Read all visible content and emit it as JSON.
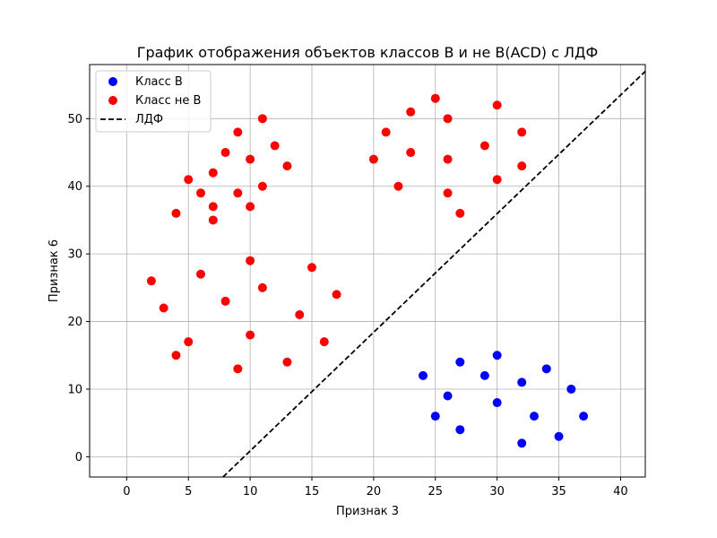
{
  "chart_data": {
    "type": "scatter",
    "title": "График отображения объектов классов B и не B(ACD) с ЛДФ",
    "xlabel": "Признак 3",
    "ylabel": "Признак 6",
    "xlim": [
      -3,
      42
    ],
    "ylim": [
      -3,
      58
    ],
    "xticks": [
      0,
      5,
      10,
      15,
      20,
      25,
      30,
      35,
      40
    ],
    "yticks": [
      0,
      10,
      20,
      30,
      40,
      50
    ],
    "grid": true,
    "legend_position": "top-left",
    "series": [
      {
        "name": "Класс B",
        "kind": "points",
        "color": "#0000ff",
        "points": [
          [
            24,
            12
          ],
          [
            25,
            6
          ],
          [
            26,
            9
          ],
          [
            27,
            14
          ],
          [
            27,
            4
          ],
          [
            29,
            12
          ],
          [
            30,
            15
          ],
          [
            30,
            8
          ],
          [
            32,
            11
          ],
          [
            32,
            2
          ],
          [
            33,
            6
          ],
          [
            34,
            13
          ],
          [
            35,
            3
          ],
          [
            36,
            10
          ],
          [
            37,
            6
          ]
        ]
      },
      {
        "name": "Класс не B",
        "kind": "points",
        "color": "#ff0000",
        "points": [
          [
            2,
            26
          ],
          [
            3,
            22
          ],
          [
            4,
            15
          ],
          [
            4,
            36
          ],
          [
            5,
            17
          ],
          [
            5,
            41
          ],
          [
            6,
            27
          ],
          [
            6,
            39
          ],
          [
            7,
            42
          ],
          [
            7,
            37
          ],
          [
            7,
            35
          ],
          [
            8,
            45
          ],
          [
            8,
            23
          ],
          [
            9,
            48
          ],
          [
            9,
            39
          ],
          [
            9,
            13
          ],
          [
            10,
            44
          ],
          [
            10,
            37
          ],
          [
            10,
            29
          ],
          [
            10,
            18
          ],
          [
            11,
            50
          ],
          [
            11,
            40
          ],
          [
            11,
            25
          ],
          [
            12,
            46
          ],
          [
            13,
            43
          ],
          [
            13,
            14
          ],
          [
            14,
            21
          ],
          [
            15,
            28
          ],
          [
            16,
            17
          ],
          [
            17,
            24
          ],
          [
            20,
            44
          ],
          [
            21,
            48
          ],
          [
            22,
            40
          ],
          [
            23,
            51
          ],
          [
            23,
            45
          ],
          [
            25,
            53
          ],
          [
            26,
            50
          ],
          [
            26,
            44
          ],
          [
            26,
            39
          ],
          [
            27,
            36
          ],
          [
            29,
            46
          ],
          [
            30,
            52
          ],
          [
            30,
            41
          ],
          [
            32,
            48
          ],
          [
            32,
            43
          ]
        ]
      },
      {
        "name": "ЛДФ",
        "kind": "line",
        "style": "dashed",
        "color": "#000000",
        "points": [
          [
            7.8,
            -3
          ],
          [
            42,
            57
          ]
        ]
      }
    ]
  }
}
